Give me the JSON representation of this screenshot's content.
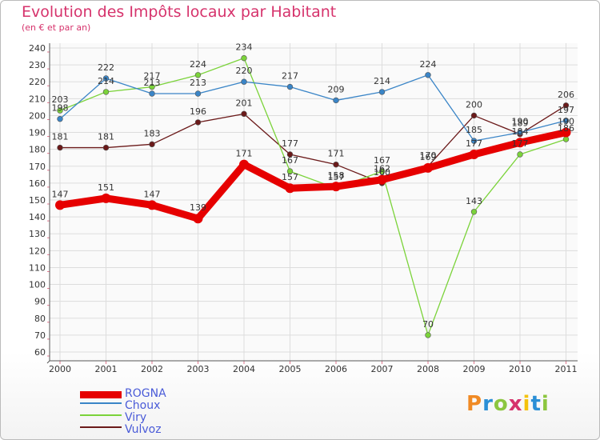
{
  "chart_data": {
    "type": "line",
    "title": "Evolution des Impôts locaux par Habitant",
    "subtitle": "(en € et par an)",
    "xlabel": "",
    "ylabel": "",
    "ylim": [
      60,
      240
    ],
    "y_ticks": [
      60,
      70,
      80,
      90,
      100,
      110,
      120,
      130,
      140,
      150,
      160,
      170,
      180,
      190,
      200,
      210,
      220,
      230,
      240
    ],
    "categories": [
      "2000",
      "2001",
      "2002",
      "2003",
      "2004",
      "2005",
      "2006",
      "2007",
      "2008",
      "2009",
      "2010",
      "2011"
    ],
    "series": [
      {
        "name": "ROGNA",
        "color": "#e60000",
        "values": [
          147,
          151,
          147,
          139,
          171,
          157,
          158,
          162,
          169,
          177,
          184,
          190
        ]
      },
      {
        "name": "Choux",
        "color": "#3a85c7",
        "values": [
          198,
          222,
          213,
          213,
          220,
          217,
          209,
          214,
          224,
          185,
          190,
          197
        ]
      },
      {
        "name": "Viry",
        "color": "#7bd33a",
        "values": [
          203,
          214,
          217,
          224,
          234,
          167,
          157,
          167,
          70,
          143,
          177,
          186
        ]
      },
      {
        "name": "Vulvoz",
        "color": "#6b1a1a",
        "values": [
          181,
          181,
          183,
          196,
          201,
          177,
          171,
          160,
          170,
          200,
          189,
          206
        ]
      }
    ],
    "legend_position": "bottom-left"
  },
  "logo": {
    "letters": [
      "P",
      "r",
      "o",
      "x",
      "i",
      "t",
      "i"
    ]
  }
}
